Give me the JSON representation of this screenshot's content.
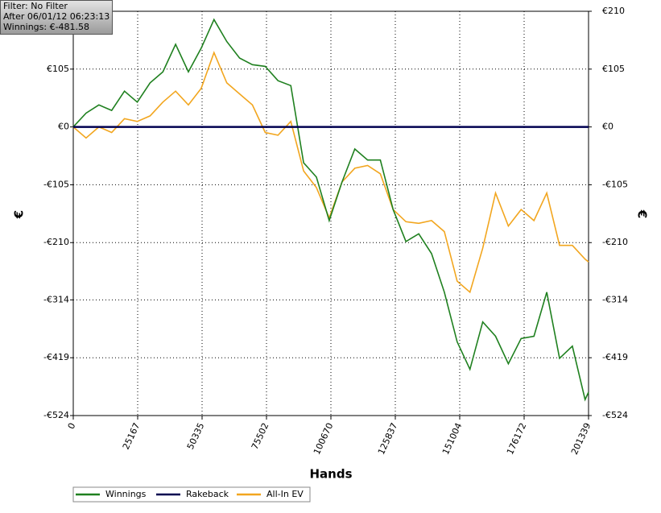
{
  "chart_data": {
    "type": "line",
    "annotations": [
      "Filter: No Filter",
      "After 06/01/12 06:23:13",
      "Winnings: €-481.58"
    ],
    "x_label": "Hands",
    "y_label": "€",
    "x": [
      0,
      5000,
      10000,
      15000,
      20000,
      25000,
      30000,
      35000,
      40000,
      45000,
      50000,
      55000,
      60000,
      65000,
      70000,
      75000,
      80000,
      85000,
      90000,
      95000,
      100000,
      105000,
      110000,
      115000,
      120000,
      125000,
      130000,
      135000,
      140000,
      145000,
      150000,
      155000,
      160000,
      165000,
      170000,
      175000,
      180000,
      185000,
      190000,
      195000,
      200000,
      201339
    ],
    "series": [
      {
        "name": "Winnings",
        "color": "#1f801f",
        "values": [
          0,
          25,
          40,
          30,
          65,
          45,
          80,
          100,
          150,
          100,
          143,
          195,
          155,
          125,
          113,
          110,
          84,
          75,
          -65,
          -91,
          -170,
          -100,
          -40,
          -60,
          -60,
          -150,
          -208,
          -194,
          -230,
          -300,
          -390,
          -440,
          -354,
          -380,
          -430,
          -384,
          -380,
          -300,
          -420,
          -398,
          -495,
          -481.58
        ]
      },
      {
        "name": "Rakeback",
        "color": "#000050",
        "values": [
          0,
          0,
          0,
          0,
          0,
          0,
          0,
          0,
          0,
          0,
          0,
          0,
          0,
          0,
          0,
          0,
          0,
          0,
          0,
          0,
          0,
          0,
          0,
          0,
          0,
          0,
          0,
          0,
          0,
          0,
          0,
          0,
          0,
          0,
          0,
          0,
          0,
          0,
          0,
          0,
          0,
          0
        ]
      },
      {
        "name": "All-In EV",
        "color": "#f2a61f",
        "values": [
          0,
          -20,
          0,
          -10,
          15,
          10,
          20,
          45,
          65,
          40,
          70,
          135,
          80,
          60,
          40,
          -10,
          -15,
          10,
          -80,
          -110,
          -165,
          -100,
          -75,
          -70,
          -85,
          -150,
          -172,
          -175,
          -170,
          -190,
          -280,
          -300,
          -220,
          -120,
          -180,
          -150,
          -170,
          -120,
          -215,
          -215,
          -240,
          -245
        ]
      }
    ],
    "xlim": [
      0,
      201339
    ],
    "xticks": [
      0,
      25167,
      50335,
      75502,
      100670,
      125837,
      151004,
      176172,
      201339
    ],
    "ylim": [
      -524,
      210
    ],
    "yticks": [
      {
        "value": 210,
        "label": "€210"
      },
      {
        "value": 105,
        "label": "€105"
      },
      {
        "value": 0,
        "label": "€0"
      },
      {
        "value": -105,
        "label": "-€105"
      },
      {
        "value": -210,
        "label": "-€210"
      },
      {
        "value": -314,
        "label": "-€314"
      },
      {
        "value": -419,
        "label": "-€419"
      },
      {
        "value": -524,
        "label": "-€524"
      }
    ],
    "grid": true
  }
}
